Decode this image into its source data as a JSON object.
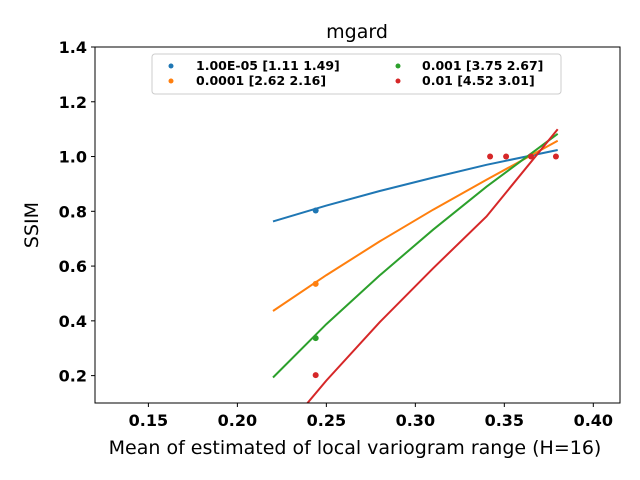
{
  "chart_data": {
    "type": "scatter",
    "title": "mgard",
    "xlabel": "Mean of estimated of local variogram range (H=16)",
    "ylabel": "SSIM",
    "xlim": [
      0.12,
      0.415
    ],
    "ylim": [
      0.1,
      1.4
    ],
    "xticks": [
      "0.15",
      "0.20",
      "0.25",
      "0.30",
      "0.35",
      "0.40"
    ],
    "yticks": [
      "0.2",
      "0.4",
      "0.6",
      "0.8",
      "1.0",
      "1.2",
      "1.4"
    ],
    "grid": false,
    "legend_position": "top-center",
    "series": [
      {
        "name": "1.00E-05 [1.11 1.49]",
        "color": "#1f77b4",
        "points": [
          [
            0.244,
            0.803
          ]
        ],
        "curve": [
          [
            0.22,
            0.763
          ],
          [
            0.25,
            0.821
          ],
          [
            0.28,
            0.874
          ],
          [
            0.31,
            0.923
          ],
          [
            0.34,
            0.97
          ],
          [
            0.38,
            1.024
          ]
        ]
      },
      {
        "name": "0.0001 [2.62 2.16]",
        "color": "#ff7f0e",
        "points": [
          [
            0.244,
            0.535
          ]
        ],
        "curve": [
          [
            0.22,
            0.436
          ],
          [
            0.25,
            0.567
          ],
          [
            0.28,
            0.69
          ],
          [
            0.31,
            0.806
          ],
          [
            0.34,
            0.915
          ],
          [
            0.38,
            1.058
          ]
        ]
      },
      {
        "name": "0.001 [3.75 2.67]",
        "color": "#2ca02c",
        "points": [
          [
            0.244,
            0.337
          ]
        ],
        "curve": [
          [
            0.22,
            0.193
          ],
          [
            0.25,
            0.388
          ],
          [
            0.28,
            0.566
          ],
          [
            0.31,
            0.733
          ],
          [
            0.34,
            0.89
          ],
          [
            0.38,
            1.083
          ]
        ]
      },
      {
        "name": "0.01 [4.52 3.01]",
        "color": "#d62728",
        "points": [
          [
            0.244,
            0.202
          ],
          [
            0.342,
            1.0
          ],
          [
            0.351,
            1.0
          ],
          [
            0.365,
            1.0
          ],
          [
            0.379,
            1.0
          ]
        ],
        "curve": [
          [
            0.22,
            -0.05
          ],
          [
            0.25,
            0.182
          ],
          [
            0.28,
            0.395
          ],
          [
            0.31,
            0.592
          ],
          [
            0.34,
            0.781
          ],
          [
            0.38,
            1.1
          ]
        ]
      }
    ]
  }
}
